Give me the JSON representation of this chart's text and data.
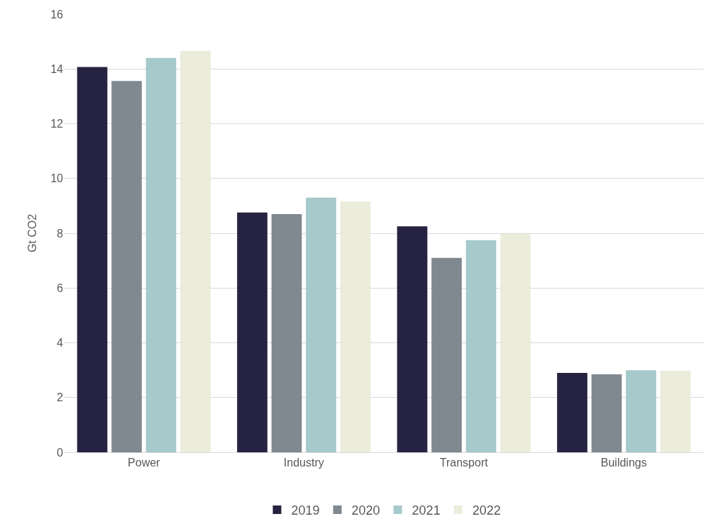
{
  "chart_data": {
    "type": "bar",
    "ylabel": "Gt CO2",
    "categories": [
      "Power",
      "Industry",
      "Transport",
      "Buildings"
    ],
    "series": [
      {
        "name": "2019",
        "color": "#262342",
        "values": [
          14.07,
          8.76,
          8.25,
          2.9
        ]
      },
      {
        "name": "2020",
        "color": "#808890",
        "values": [
          13.56,
          8.7,
          7.1,
          2.85
        ]
      },
      {
        "name": "2021",
        "color": "#a6c9cb",
        "values": [
          14.4,
          9.3,
          7.75,
          3.0
        ]
      },
      {
        "name": "2022",
        "color": "#ebecdb",
        "values": [
          14.66,
          9.16,
          7.98,
          2.98
        ]
      }
    ],
    "ylim": [
      0,
      16
    ],
    "yticks": [
      0,
      2,
      4,
      6,
      8,
      10,
      12,
      14,
      16
    ],
    "grid": "y",
    "legend": "bottom"
  }
}
